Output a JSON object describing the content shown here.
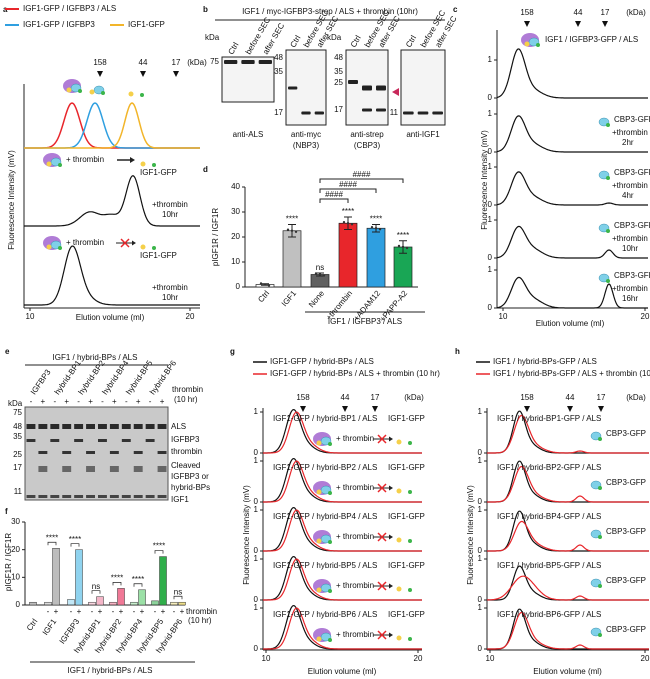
{
  "panel_a": {
    "letter": "a",
    "legend": [
      {
        "name": "IGF1-GFP / IGFBP3 / ALS",
        "color": "#e8262b"
      },
      {
        "name": "IGF1-GFP / IGFBP3",
        "color": "#2f9fe0"
      },
      {
        "name": "IGF1-GFP",
        "color": "#f2b52a"
      }
    ],
    "markers": [
      158,
      44,
      17
    ],
    "unit": "(kDa)",
    "rows": [
      {
        "action": "+ thrombin",
        "product": "IGF1-GFP",
        "condition": [
          "+thrombin",
          "10hr"
        ]
      },
      {
        "action": "+ thrombin",
        "product": "IGF1-GFP",
        "condition": [
          "+thrombin",
          "10hr"
        ]
      }
    ],
    "xlim": [
      10,
      20
    ],
    "xticks": [
      10,
      20
    ],
    "xlabel": "Elution volume (ml)",
    "ylabel": "Fluorescence Intensity (mV)"
  },
  "panel_b": {
    "letter": "b",
    "title": "IGF1 / myc-IGFBP3-strep / ALS + thrombin (10hr)",
    "lanes": [
      "Ctrl",
      "before SEC",
      "after SEC"
    ],
    "unit": "kDa",
    "blots": [
      {
        "antibody": "anti-ALS",
        "markers": [
          75
        ]
      },
      {
        "antibody": "anti-myc",
        "target": "(NBP3)",
        "markers": [
          48,
          35,
          17
        ]
      },
      {
        "antibody": "anti-strep",
        "target": "(CBP3)",
        "markers": [
          48,
          35,
          25,
          17
        ]
      },
      {
        "antibody": "anti-IGF1",
        "markers": [
          11
        ]
      }
    ]
  },
  "panel_c": {
    "letter": "c",
    "markers": [
      158,
      44,
      17
    ],
    "unit": "(kDa)",
    "top_label": "IGF1 / IGFBP3-GFP / ALS",
    "rows": [
      {
        "product": "CBP3-GFP",
        "condition": [
          "+thrombin",
          "2hr"
        ]
      },
      {
        "product": "CBP3-GFP",
        "condition": [
          "+thrombin",
          "4hr"
        ]
      },
      {
        "product": "CBP3-GFP",
        "condition": [
          "+thrombin",
          "10hr"
        ]
      },
      {
        "product": "CBP3-GFP",
        "condition": [
          "+thrombin",
          "16hr"
        ]
      }
    ],
    "yticks": [
      0,
      1
    ],
    "xlim": [
      10,
      20
    ],
    "xticks": [
      10,
      20
    ],
    "xlabel": "Elution volume (ml)",
    "ylabel": "Fluorescence Intensity (mV)"
  },
  "panel_d": {
    "letter": "d",
    "type": "bar",
    "ylabel": "pIGF1R / IGF1R",
    "categories": [
      "Ctrl",
      "IGF1",
      "None",
      "+thrombin",
      "+ADAM12",
      "+PAPP-A2"
    ],
    "values": [
      1,
      22.5,
      5,
      25.5,
      23.5,
      16
    ],
    "errors": [
      0.3,
      2.5,
      0.6,
      2.5,
      1.5,
      2.5
    ],
    "colors": [
      "#ffffff",
      "#c0c0c0",
      "#606060",
      "#e8262b",
      "#2f9fe0",
      "#19a655"
    ],
    "significance": [
      null,
      "****",
      "ns",
      "****",
      "****",
      "****"
    ],
    "comparisons": [
      {
        "label": "####",
        "from": "None",
        "to": "+thrombin"
      },
      {
        "label": "####",
        "from": "None",
        "to": "+ADAM12"
      },
      {
        "label": "####",
        "from": "None",
        "to": "+PAPP-A2"
      }
    ],
    "ylim": [
      0,
      40
    ],
    "yticks": [
      0,
      10,
      20,
      30,
      40
    ],
    "group_label": "IGF1 / IGFBP3 / ALS"
  },
  "panel_e": {
    "letter": "e",
    "title": "IGF1 / hybrid-BPs / ALS",
    "lanes": [
      "IGFBP3",
      "hybrid-BP1",
      "hybrid-BP2",
      "hybrid-BP4",
      "hybrid-BP5",
      "hybrid-BP6"
    ],
    "treatment": [
      "thrombin",
      "(10 hr)"
    ],
    "signs": [
      "-",
      "+"
    ],
    "unit": "kDa",
    "markers": [
      75,
      48,
      35,
      25,
      17,
      11
    ],
    "bands": [
      "ALS",
      "IGFBP3",
      "thrombin",
      "Cleaved",
      "IGFBP3 or",
      "hybrid-BPs",
      "IGF1"
    ]
  },
  "panel_f": {
    "letter": "f",
    "type": "bar",
    "ylabel": "pIGF1R / IGF1R",
    "ylim": [
      0,
      30
    ],
    "yticks": [
      0,
      10,
      20,
      30
    ],
    "groups": [
      {
        "category": "Ctrl",
        "values": [
          1
        ],
        "color": "#bdbdbd"
      },
      {
        "category": "IGF1",
        "values": [
          1,
          20.5
        ],
        "color": "#bdbdbd"
      },
      {
        "category": "IGFBP3",
        "values": [
          2,
          20
        ],
        "color": "#8fd3ef"
      },
      {
        "category": "hybrid-BP1",
        "values": [
          1,
          3
        ],
        "color": "#f4b6c8"
      },
      {
        "category": "hybrid-BP2",
        "values": [
          1,
          6
        ],
        "color": "#f07896"
      },
      {
        "category": "hybrid-BP4",
        "values": [
          1,
          5.5
        ],
        "color": "#9be0a6"
      },
      {
        "category": "hybrid-BP5",
        "values": [
          1.5,
          17.5
        ],
        "color": "#2fae4a"
      },
      {
        "category": "hybrid-BP6",
        "values": [
          1,
          1
        ],
        "color": "#efe08a"
      }
    ],
    "significance": [
      null,
      "****",
      "****",
      "ns",
      "****",
      "****",
      "****",
      "ns"
    ],
    "signs": [
      "-",
      "+"
    ],
    "treatment": [
      "thrombin",
      "(10 hr)"
    ],
    "group_label": "IGF1 / hybrid-BPs / ALS"
  },
  "panel_g": {
    "letter": "g",
    "legend": [
      {
        "name": "IGF1-GFP / hybrid-BPs / ALS",
        "color": "#111111"
      },
      {
        "name": "IGF1-GFP / hybrid-BPs / ALS + thrombin (10 hr)",
        "color": "#e8262b"
      }
    ],
    "markers": [
      158,
      44,
      17
    ],
    "unit": "(kDa)",
    "rows": [
      {
        "complex": "IGF1-GFP / hybrid-BP1 / ALS",
        "product": "IGF1-GFP",
        "action": "+ thrombin"
      },
      {
        "complex": "IGF1-GFP / hybrid-BP2 / ALS",
        "product": "IGF1-GFP",
        "action": "+ thrombin"
      },
      {
        "complex": "IGF1-GFP / hybrid-BP4 / ALS",
        "product": "IGF1-GFP",
        "action": "+ thrombin"
      },
      {
        "complex": "IGF1-GFP / hybrid-BP5 / ALS",
        "product": "IGF1-GFP",
        "action": "+ thrombin"
      },
      {
        "complex": "IGF1-GFP / hybrid-BP6 / ALS",
        "product": "IGF1-GFP",
        "action": "+ thrombin"
      }
    ],
    "yticks": [
      0,
      1
    ],
    "xlim": [
      10,
      20
    ],
    "xticks": [
      10,
      20
    ],
    "xlabel": "Elution volume (ml)",
    "ylabel": "Fluorescence Intensity (mV)"
  },
  "panel_h": {
    "letter": "h",
    "legend": [
      {
        "name": "IGF1 / hybrid-BPs-GFP / ALS",
        "color": "#111111"
      },
      {
        "name": "IGF1 / hybrid-BPs-GFP / ALS + thrombin (10 hr)",
        "color": "#e8262b"
      }
    ],
    "markers": [
      158,
      44,
      17
    ],
    "unit": "(kDa)",
    "rows": [
      {
        "complex": "IGF1 / hybrid-BP1-GFP / ALS",
        "product": "CBP3-GFP"
      },
      {
        "complex": "IGF1 / hybrid-BP2-GFP / ALS",
        "product": "CBP3-GFP"
      },
      {
        "complex": "IGF1 / hybrid-BP4-GFP / ALS",
        "product": "CBP3-GFP"
      },
      {
        "complex": "IGF1 / hybrid-BP5-GFP / ALS",
        "product": "CBP3-GFP"
      },
      {
        "complex": "IGF1 / hybrid-BP6-GFP / ALS",
        "product": "CBP3-GFP"
      }
    ],
    "yticks": [
      0,
      1
    ],
    "xlim": [
      10,
      20
    ],
    "xticks": [
      10,
      20
    ],
    "xlabel": "Elution volume (ml)",
    "ylabel": "Fluorescence Intensity (mV)"
  }
}
